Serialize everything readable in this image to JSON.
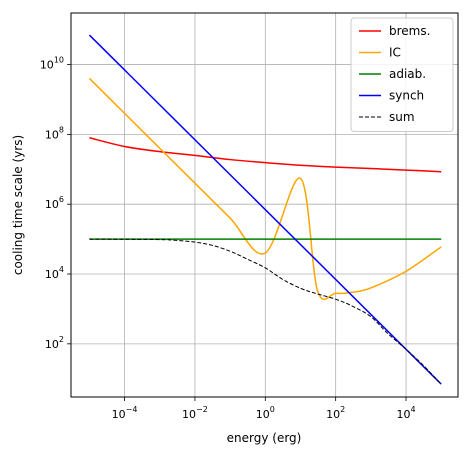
{
  "chart_data": {
    "type": "line",
    "title": "",
    "xlabel": "energy (erg)",
    "ylabel": "cooling time scale (yrs)",
    "xscale": "log",
    "yscale": "log",
    "xlim": [
      3e-06,
      300000
    ],
    "ylim": [
      3,
      300000000000
    ],
    "grid": true,
    "legend_position": "top-right",
    "x_ticks": [
      {
        "value": 0.0001,
        "base": "10",
        "exp": "−4"
      },
      {
        "value": 0.01,
        "base": "10",
        "exp": "−2"
      },
      {
        "value": 1,
        "base": "10",
        "exp": "0"
      },
      {
        "value": 100,
        "base": "10",
        "exp": "2"
      },
      {
        "value": 10000,
        "base": "10",
        "exp": "4"
      }
    ],
    "y_ticks": [
      {
        "value": 100,
        "base": "10",
        "exp": "2"
      },
      {
        "value": 10000,
        "base": "10",
        "exp": "4"
      },
      {
        "value": 1000000,
        "base": "10",
        "exp": "6"
      },
      {
        "value": 100000000,
        "base": "10",
        "exp": "8"
      },
      {
        "value": 10000000000,
        "base": "10",
        "exp": "10"
      }
    ],
    "series": [
      {
        "name": "brems.",
        "color": "#ff0000",
        "dash": "solid",
        "x": [
          1e-05,
          0.0001,
          0.001,
          0.01,
          0.1,
          1,
          10,
          100,
          1000,
          10000,
          100000
        ],
        "y": [
          80000000,
          45000000,
          32000000,
          25000000,
          19000000,
          15500000,
          13000000,
          11500000,
          10500000,
          9500000,
          8500000
        ]
      },
      {
        "name": "IC",
        "color": "#ffa500",
        "dash": "solid",
        "x": [
          1e-05,
          0.0001,
          0.001,
          0.01,
          0.1,
          1,
          10,
          30,
          100,
          300,
          1000,
          10000,
          100000
        ],
        "y": [
          4000000000,
          400000000,
          40000000,
          4000000,
          400000,
          40000,
          5500000,
          3500,
          2800,
          3000,
          4000,
          12000,
          60000
        ]
      },
      {
        "name": "adiab.",
        "color": "#008000",
        "dash": "solid",
        "x": [
          1e-05,
          100000
        ],
        "y": [
          100000,
          100000
        ]
      },
      {
        "name": "synch",
        "color": "#0000ff",
        "dash": "solid",
        "x": [
          1e-05,
          100000
        ],
        "y": [
          70000000000,
          7
        ]
      },
      {
        "name": "sum",
        "color": "#000000",
        "dash": "dashed",
        "x": [
          1e-05,
          0.0001,
          0.001,
          0.003,
          0.01,
          0.03,
          0.1,
          0.3,
          1,
          3,
          10,
          30,
          100,
          300,
          1000,
          3000,
          10000,
          30000,
          100000
        ],
        "y": [
          100000,
          99000,
          97000,
          92000,
          82000,
          67000,
          45000,
          27000,
          15000,
          7200,
          3900,
          2700,
          1900,
          1200,
          600,
          200,
          70,
          25,
          7
        ]
      }
    ]
  }
}
